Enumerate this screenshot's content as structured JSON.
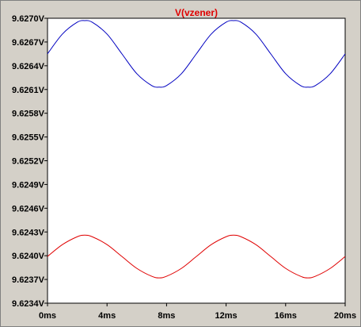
{
  "chart_data": {
    "type": "line",
    "title": "V(vzener)",
    "xlim": [
      0,
      20
    ],
    "ylim": [
      9.6234,
      9.627
    ],
    "x_ticks": [
      {
        "value": 0,
        "label": "0ms"
      },
      {
        "value": 4,
        "label": "4ms"
      },
      {
        "value": 8,
        "label": "8ms"
      },
      {
        "value": 12,
        "label": "12ms"
      },
      {
        "value": 16,
        "label": "16ms"
      },
      {
        "value": 20,
        "label": "20ms"
      }
    ],
    "y_ticks": [
      {
        "value": 9.627,
        "label": "9.6270V"
      },
      {
        "value": 9.6267,
        "label": "9.6267V"
      },
      {
        "value": 9.6264,
        "label": "9.6264V"
      },
      {
        "value": 9.6261,
        "label": "9.6261V"
      },
      {
        "value": 9.6258,
        "label": "9.6258V"
      },
      {
        "value": 9.6255,
        "label": "9.6255V"
      },
      {
        "value": 9.6252,
        "label": "9.6252V"
      },
      {
        "value": 9.6249,
        "label": "9.6249V"
      },
      {
        "value": 9.6246,
        "label": "9.6246V"
      },
      {
        "value": 9.6243,
        "label": "9.6243V"
      },
      {
        "value": 9.624,
        "label": "9.6240V"
      },
      {
        "value": 9.6237,
        "label": "9.6237V"
      },
      {
        "value": 9.6234,
        "label": "9.6234V"
      }
    ],
    "series": [
      {
        "color": "#0000c0",
        "x": [
          0,
          1,
          2,
          2.5,
          3,
          4,
          5,
          6,
          7,
          7.5,
          8,
          9,
          10,
          11,
          12,
          12.5,
          13,
          14,
          15,
          16,
          17,
          17.5,
          18,
          19,
          20
        ],
        "y": [
          9.62655,
          9.6268,
          9.62695,
          9.62697,
          9.62695,
          9.6268,
          9.62655,
          9.6263,
          9.62615,
          9.62613,
          9.62615,
          9.6263,
          9.62655,
          9.6268,
          9.62695,
          9.62697,
          9.62695,
          9.6268,
          9.62655,
          9.6263,
          9.62615,
          9.62613,
          9.62615,
          9.6263,
          9.62655
        ]
      },
      {
        "color": "#e00000",
        "x": [
          0,
          1,
          2,
          2.5,
          3,
          4,
          5,
          6,
          7,
          7.5,
          8,
          9,
          10,
          11,
          12,
          12.5,
          13,
          14,
          15,
          16,
          17,
          17.5,
          18,
          19,
          20
        ],
        "y": [
          9.62399,
          9.62414,
          9.62424,
          9.62426,
          9.62424,
          9.62414,
          9.62399,
          9.62384,
          9.62374,
          9.62372,
          9.62374,
          9.62384,
          9.62399,
          9.62414,
          9.62424,
          9.62426,
          9.62424,
          9.62414,
          9.62399,
          9.62384,
          9.62374,
          9.62372,
          9.62374,
          9.62384,
          9.62399
        ]
      }
    ],
    "grid": false,
    "legend": "none"
  }
}
